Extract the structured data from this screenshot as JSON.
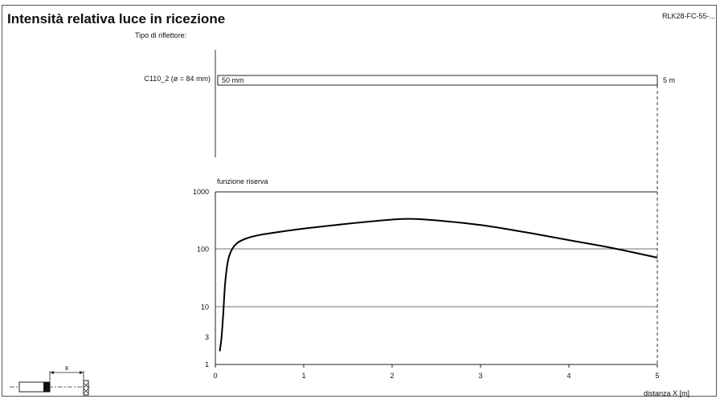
{
  "header": {
    "title": "Intensità relativa luce in ricezione",
    "code": "RLK28-FC-55-..."
  },
  "reflector": {
    "heading": "Tipo di riflettore:",
    "name": "C110_2 (ø = 84 mm)",
    "min_label": "50 mm",
    "max_label": "5 m"
  },
  "chart_data": {
    "type": "line",
    "title": "funzione riserva",
    "xlabel": "distanza X [m]",
    "ylabel": "",
    "xlim": [
      0,
      5
    ],
    "ylim": [
      1,
      1000
    ],
    "y_scale": "log",
    "x_ticks": [
      "0",
      "1",
      "2",
      "3",
      "4",
      "5"
    ],
    "y_ticks": [
      "1",
      "3",
      "10",
      "100",
      "1000"
    ],
    "series": [
      {
        "x": [
          0.05,
          0.07,
          0.09,
          0.11,
          0.14,
          0.18,
          0.25,
          0.35,
          0.5,
          0.8,
          1.0,
          1.5,
          2.0,
          2.2,
          2.5,
          3.0,
          3.5,
          4.0,
          4.5,
          5.0
        ],
        "y": [
          1.7,
          3,
          8,
          25,
          60,
          95,
          130,
          155,
          178,
          210,
          230,
          280,
          330,
          340,
          320,
          265,
          200,
          145,
          105,
          72
        ]
      }
    ]
  },
  "diagram": {
    "distance_label": "x"
  }
}
